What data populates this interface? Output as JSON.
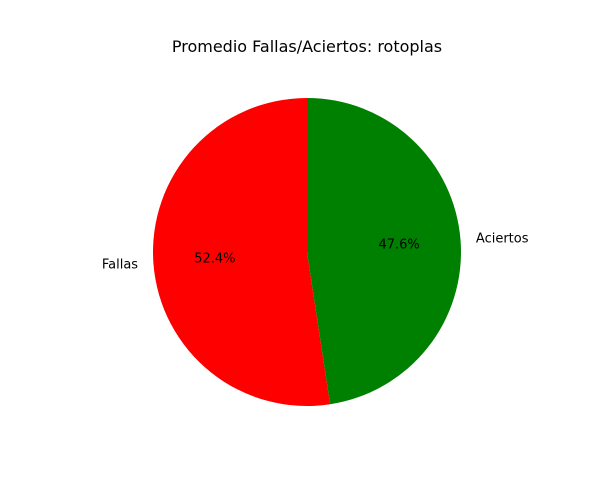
{
  "chart_data": {
    "type": "pie",
    "title": "Promedio Fallas/Aciertos: rotoplas",
    "categories": [
      "Fallas",
      "Aciertos"
    ],
    "values": [
      52.4,
      47.6
    ],
    "percent_labels": [
      "52.4%",
      "47.6%"
    ],
    "colors": [
      "#ff0000",
      "#008000"
    ],
    "start_angle_deg": 90,
    "direction": "counterclockwise"
  }
}
